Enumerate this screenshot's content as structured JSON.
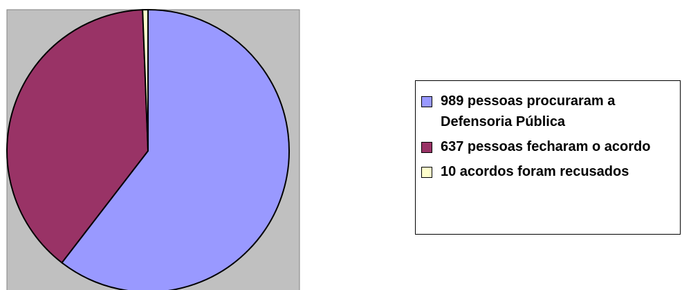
{
  "chart_data": {
    "type": "pie",
    "categories": [
      "989 pessoas procuraram a Defensoria Pública",
      "637 pessoas fecharam o acordo",
      "10 acordos foram recusados"
    ],
    "values": [
      989,
      637,
      10
    ],
    "colors": [
      "#9999ff",
      "#993366",
      "#ffffcc"
    ],
    "legend": "right"
  }
}
